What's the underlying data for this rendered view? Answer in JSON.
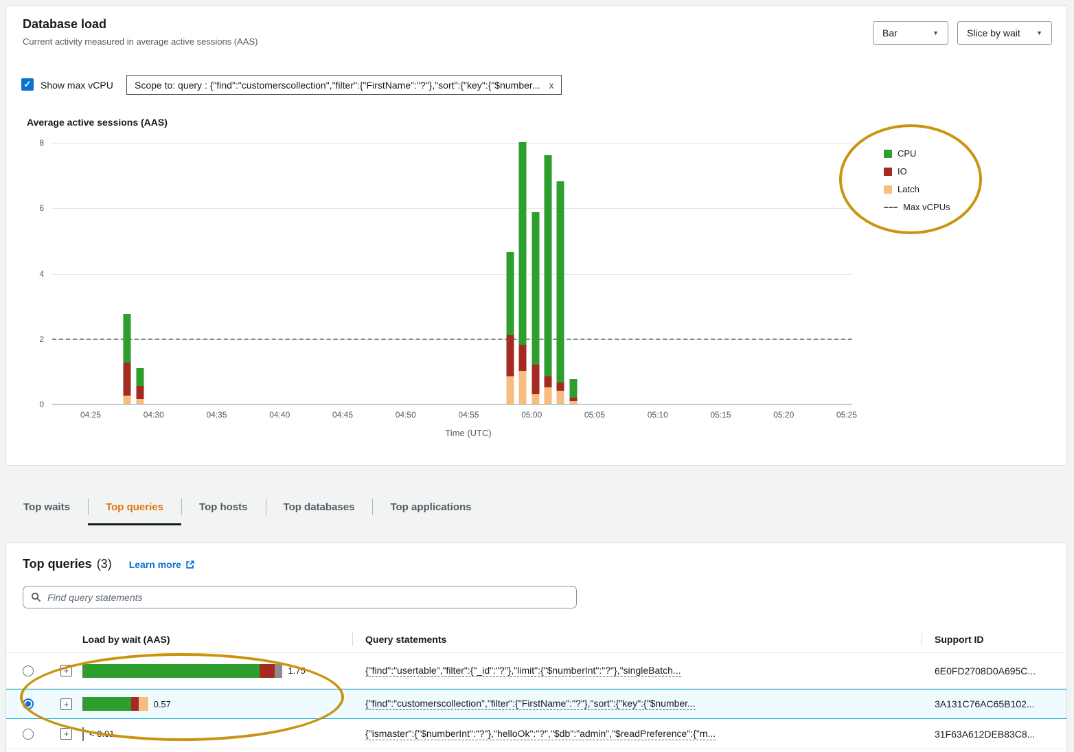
{
  "header": {
    "title": "Database load",
    "subtitle": "Current activity measured in average active sessions (AAS)",
    "chart_type_dropdown": "Bar",
    "slice_dropdown": "Slice by wait"
  },
  "controls": {
    "show_max_vcpu_label": "Show max vCPU",
    "scope_chip_text": "Scope to: query : {\"find\":\"customerscollection\",\"filter\":{\"FirstName\":\"?\"},\"sort\":{\"key\":{\"$number...",
    "scope_chip_close": "x"
  },
  "chart_data": {
    "type": "bar",
    "title": "Average active sessions (AAS)",
    "xlabel": "Time (UTC)",
    "ylabel": "Average active sessions (AAS)",
    "ylim": [
      0,
      8
    ],
    "yticks": [
      0,
      2,
      4,
      6,
      8
    ],
    "xticks": [
      "04:25",
      "04:30",
      "04:35",
      "04:40",
      "04:45",
      "04:50",
      "04:55",
      "05:00",
      "05:05",
      "05:10",
      "05:15",
      "05:20",
      "05:25"
    ],
    "max_vcpus": 2,
    "stack_order": [
      "latch",
      "io",
      "cpu"
    ],
    "colors": {
      "cpu": "#2e9e2e",
      "io": "#a52a21",
      "latch": "#f8bd7e",
      "max_vcpus": "#7f8897"
    },
    "legend": [
      {
        "label": "CPU",
        "color": "#2e9e2e"
      },
      {
        "label": "IO",
        "color": "#a52a21"
      },
      {
        "label": "Latch",
        "color": "#f8bd7e"
      },
      {
        "label": "Max vCPUs",
        "color": "#545b64",
        "style": "dashed"
      }
    ],
    "bars": [
      {
        "time": "04:28",
        "minute": 2.9,
        "latch": 0.25,
        "io": 1.0,
        "cpu": 1.5
      },
      {
        "time": "04:29",
        "minute": 3.9,
        "latch": 0.15,
        "io": 0.4,
        "cpu": 0.55
      },
      {
        "time": "04:58",
        "minute": 33.3,
        "latch": 0.85,
        "io": 1.25,
        "cpu": 2.55
      },
      {
        "time": "04:59",
        "minute": 34.3,
        "latch": 1.0,
        "io": 0.8,
        "cpu": 6.2
      },
      {
        "time": "05:00",
        "minute": 35.3,
        "latch": 0.3,
        "io": 0.9,
        "cpu": 4.65
      },
      {
        "time": "05:01",
        "minute": 36.3,
        "latch": 0.5,
        "io": 0.35,
        "cpu": 6.75
      },
      {
        "time": "05:02",
        "minute": 37.3,
        "latch": 0.4,
        "io": 0.25,
        "cpu": 6.15
      },
      {
        "time": "05:03",
        "minute": 38.3,
        "latch": 0.08,
        "io": 0.12,
        "cpu": 0.55
      }
    ]
  },
  "tabs": [
    {
      "label": "Top waits",
      "active": false
    },
    {
      "label": "Top queries",
      "active": true
    },
    {
      "label": "Top hosts",
      "active": false
    },
    {
      "label": "Top databases",
      "active": false
    },
    {
      "label": "Top applications",
      "active": false
    }
  ],
  "queries_panel": {
    "title": "Top queries",
    "count": "(3)",
    "learn_more_label": "Learn more",
    "search_placeholder": "Find query statements",
    "columns": [
      "Load by wait (AAS)",
      "Query statements",
      "Support ID"
    ],
    "rows": [
      {
        "selected": false,
        "load_label": "1.75",
        "segments": [
          {
            "color": "#2e9e2e",
            "value": 1.55
          },
          {
            "color": "#a52a21",
            "value": 0.13
          },
          {
            "color": "#8c8c8c",
            "value": 0.07
          }
        ],
        "query": "{\"find\":\"usertable\",\"filter\":{\"_id\":\"?\"},\"limit\":{\"$numberInt\":\"?\"},\"singleBatch...",
        "support_id": "6E0FD2708D0A695C..."
      },
      {
        "selected": true,
        "load_label": "0.57",
        "segments": [
          {
            "color": "#2e9e2e",
            "value": 0.42
          },
          {
            "color": "#a52a21",
            "value": 0.07
          },
          {
            "color": "#f8bd7e",
            "value": 0.08
          }
        ],
        "query": "{\"find\":\"customerscollection\",\"filter\":{\"FirstName\":\"?\"},\"sort\":{\"key\":{\"$number...",
        "support_id": "3A131C76AC65B102..."
      },
      {
        "selected": false,
        "load_label": "< 0.01",
        "segments": [
          {
            "color": "#687078",
            "value": 0.006
          }
        ],
        "query": "{\"ismaster\":{\"$numberInt\":\"?\"},\"helloOk\":\"?\",\"$db\":\"admin\",\"$readPreference\":{\"m...",
        "support_id": "31F63A612DEB83C8..."
      }
    ]
  }
}
